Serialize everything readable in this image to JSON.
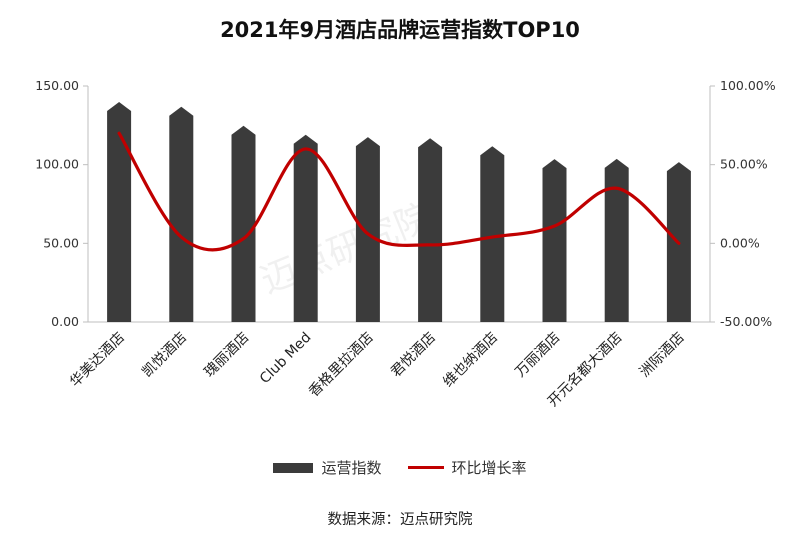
{
  "chart_data": {
    "type": "bar",
    "title": "2021年9月酒店品牌运营指数TOP10",
    "categories": [
      "华美达酒店",
      "凯悦酒店",
      "瑰丽酒店",
      "Club Med",
      "香格里拉酒店",
      "君悦酒店",
      "维也纳酒店",
      "万丽酒店",
      "开元名都大酒店",
      "洲际酒店"
    ],
    "series": [
      {
        "name": "运营指数",
        "type": "bar",
        "axis": "left",
        "color": "#3b3b3b",
        "values": [
          139.8,
          136.8,
          124.7,
          119.0,
          117.5,
          116.8,
          111.7,
          103.5,
          103.7,
          101.6
        ]
      },
      {
        "name": "环比增长率",
        "type": "line",
        "axis": "right",
        "color": "#c00000",
        "values": [
          70.0,
          4.0,
          3.0,
          60.0,
          6.0,
          -1.0,
          4.0,
          11.0,
          35.0,
          0.0
        ]
      }
    ],
    "y_left": {
      "ylim": [
        0,
        150
      ],
      "ticks": [
        "0.00",
        "50.00",
        "100.00",
        "150.00"
      ]
    },
    "y_right": {
      "ylim": [
        -50,
        100
      ],
      "ticks": [
        "-50.00%",
        "0.00%",
        "50.00%",
        "100.00%"
      ]
    },
    "legend": "bottom",
    "grid": false
  },
  "source": "数据来源：迈点研究院",
  "watermark": "迈点研究院"
}
